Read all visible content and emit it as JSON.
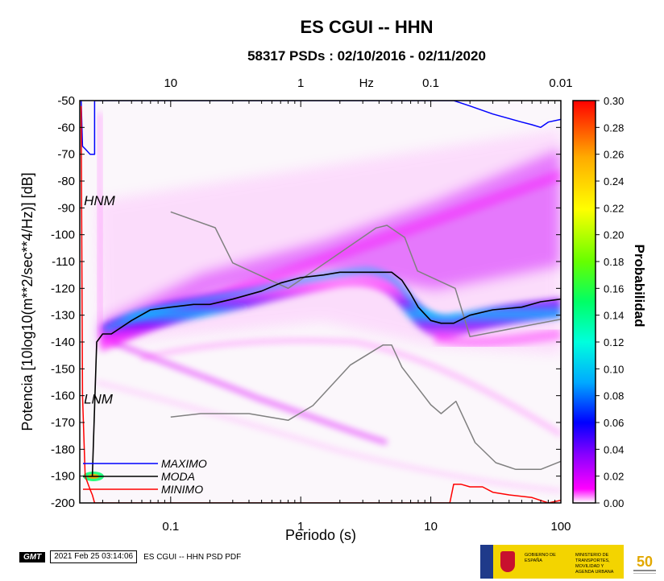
{
  "chart_data": {
    "type": "heatmap",
    "title": "ES CGUI -- HHN",
    "subtitle": "58317 PSDs : 02/10/2016 - 02/11/2020",
    "xlabel": "Periodo (s)",
    "ylabel": "Potencia [10log10(m**2/sec**4/Hz)] [dB]",
    "x_scale": "log",
    "xlim": [
      0.02,
      100
    ],
    "ylim": [
      -200,
      -50
    ],
    "x_ticks": [
      {
        "value": 0.1,
        "label": "0.1"
      },
      {
        "value": 1,
        "label": "1"
      },
      {
        "value": 10,
        "label": "10"
      },
      {
        "value": 100,
        "label": "100"
      }
    ],
    "top_axis_ticks": [
      {
        "value": 0.1,
        "label": "10"
      },
      {
        "value": 1,
        "label": "1"
      },
      {
        "value": 10,
        "label": "0.1"
      },
      {
        "value": 100,
        "label": "0.01"
      }
    ],
    "top_axis_unit": {
      "value": 3.2,
      "label": "Hz"
    },
    "y_ticks": [
      -200,
      -190,
      -180,
      -170,
      -160,
      -150,
      -140,
      -130,
      -120,
      -110,
      -100,
      -90,
      -80,
      -70,
      -60,
      -50
    ],
    "colorbar": {
      "label": "Probabilidad",
      "min": 0.0,
      "max": 0.3,
      "ticks": [
        "0.00",
        "0.02",
        "0.04",
        "0.06",
        "0.08",
        "0.10",
        "0.12",
        "0.14",
        "0.16",
        "0.18",
        "0.20",
        "0.22",
        "0.24",
        "0.26",
        "0.28",
        "0.30"
      ],
      "colors": [
        "#ffffff",
        "#ff00ff",
        "#8800ff",
        "#0000ff",
        "#00aaff",
        "#00ffdd",
        "#00ff66",
        "#66ff00",
        "#ffff00",
        "#ffaa00",
        "#ff0000"
      ]
    },
    "annotations": [
      {
        "text": "HNM",
        "x": 0.0215,
        "y": -89
      },
      {
        "text": "LNM",
        "x": 0.0215,
        "y": -163
      }
    ],
    "legend": [
      {
        "name": "MAXIMO",
        "color": "#0000ff"
      },
      {
        "name": "MODA",
        "color": "#000000"
      },
      {
        "name": "MINIMO",
        "color": "#ff0000"
      }
    ],
    "series": [
      {
        "name": "HNM",
        "color": "#808080",
        "x": [
          0.1,
          0.22,
          0.3,
          0.8,
          3.8,
          4.6,
          6.3,
          7.9,
          15.4,
          20,
          100
        ],
        "y": [
          -91.5,
          -97.4,
          -110.5,
          -120,
          -97.5,
          -96.5,
          -101,
          -113.5,
          -120,
          -138,
          -131.5
        ]
      },
      {
        "name": "LNM",
        "color": "#808080",
        "x": [
          0.1,
          0.17,
          0.4,
          0.8,
          1.24,
          2.4,
          4.3,
          5.0,
          6.0,
          10,
          12,
          15.6,
          21.9,
          31.6,
          45,
          70,
          101
        ],
        "y": [
          -168,
          -166.7,
          -166.7,
          -169.2,
          -163.7,
          -148.6,
          -141.1,
          -141.1,
          -149.4,
          -163.4,
          -166.7,
          -162.1,
          -177.5,
          -185,
          -187.5,
          -187.5,
          -184.4
        ]
      },
      {
        "name": "MAXIMO",
        "color": "#0000ff",
        "x": [
          0.0205,
          0.021,
          0.022,
          0.024,
          0.026,
          0.02601,
          0.1,
          0.2,
          0.5,
          1,
          2,
          5,
          10,
          15,
          20,
          30,
          50,
          60,
          70,
          80,
          100
        ],
        "y": [
          -50,
          -67,
          -68,
          -70,
          -70,
          -50,
          -50,
          -50,
          -50,
          -50,
          -50,
          -50,
          -50,
          -50,
          -52,
          -55,
          -58,
          -59,
          -60,
          -58,
          -57
        ]
      },
      {
        "name": "MODA",
        "color": "#000000",
        "x": [
          0.025,
          0.027,
          0.03,
          0.035,
          0.05,
          0.07,
          0.1,
          0.15,
          0.2,
          0.3,
          0.5,
          0.7,
          1,
          1.5,
          2,
          3,
          4,
          5,
          6,
          7,
          8,
          10,
          12,
          15,
          20,
          30,
          50,
          70,
          100
        ],
        "y": [
          -190,
          -140,
          -137,
          -137,
          -132,
          -128,
          -127,
          -126,
          -126,
          -124,
          -121,
          -118,
          -116,
          -115,
          -114,
          -114,
          -114,
          -114,
          -117,
          -122,
          -127,
          -132,
          -133,
          -133,
          -130,
          -128,
          -127,
          -125,
          -124
        ]
      },
      {
        "name": "MINIMO",
        "color": "#ff0000",
        "x": [
          0.0205,
          0.021,
          0.022,
          0.024,
          0.025,
          0.026,
          0.03,
          0.05,
          0.1,
          1,
          5,
          10,
          14,
          15,
          17,
          20,
          25,
          30,
          40,
          60,
          80,
          100
        ],
        "y": [
          -52,
          -160,
          -190,
          -195,
          -197,
          -200,
          -200,
          -200,
          -200,
          -200,
          -200,
          -200,
          -200,
          -193,
          -193,
          -194,
          -194,
          -196,
          -197,
          -198,
          -200,
          -199
        ]
      }
    ]
  },
  "legend_labels": {
    "maximo": "MAXIMO",
    "moda": "MODA",
    "minimo": "MINIMO"
  },
  "footer": {
    "logo": "GMT",
    "timestamp": "2021 Feb 25 03:14:06",
    "caption": "ES CGUI -- HHN PSD PDF",
    "gov_left": "GOBIERNO DE ESPAÑA",
    "gov_right": "MINISTERIO DE TRANSPORTES, MOVILIDAD Y AGENDA URBANA",
    "anniversary": "50"
  }
}
